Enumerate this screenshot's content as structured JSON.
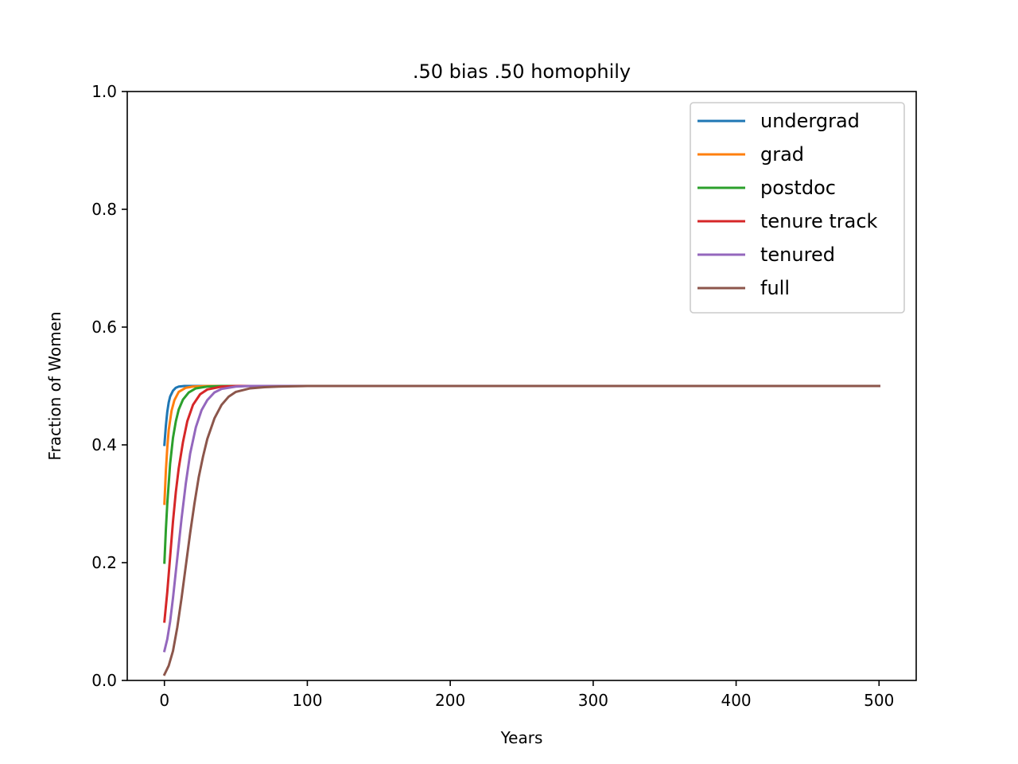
{
  "chart_data": {
    "type": "line",
    "title": ".50 bias .50 homophily",
    "xlabel": "Years",
    "ylabel": "Fraction of Women",
    "xlim": [
      -26,
      526
    ],
    "ylim": [
      0.0,
      1.0
    ],
    "x_ticks": [
      0,
      100,
      200,
      300,
      400,
      500
    ],
    "x_tick_labels": [
      "0",
      "100",
      "200",
      "300",
      "400",
      "500"
    ],
    "y_ticks": [
      0.0,
      0.2,
      0.4,
      0.6,
      0.8,
      1.0
    ],
    "y_tick_labels": [
      "0.0",
      "0.2",
      "0.4",
      "0.6",
      "0.8",
      "1.0"
    ],
    "grid": false,
    "legend_position": "top-right",
    "series": [
      {
        "name": "undergrad",
        "color": "#1f77b4",
        "x": [
          0,
          1,
          2,
          3,
          4,
          6,
          8,
          10,
          14,
          20,
          40,
          100,
          200,
          300,
          400,
          500
        ],
        "y": [
          0.4,
          0.432,
          0.456,
          0.472,
          0.482,
          0.492,
          0.497,
          0.499,
          0.5,
          0.5,
          0.5,
          0.5,
          0.5,
          0.5,
          0.5,
          0.5
        ]
      },
      {
        "name": "grad",
        "color": "#ff7f0e",
        "x": [
          0,
          1,
          2,
          3,
          5,
          7,
          10,
          15,
          20,
          30,
          60,
          100,
          200,
          300,
          400,
          500
        ],
        "y": [
          0.3,
          0.355,
          0.395,
          0.425,
          0.458,
          0.476,
          0.49,
          0.497,
          0.499,
          0.5,
          0.5,
          0.5,
          0.5,
          0.5,
          0.5,
          0.5
        ]
      },
      {
        "name": "postdoc",
        "color": "#2ca02c",
        "x": [
          0,
          1,
          2,
          4,
          6,
          8,
          10,
          13,
          17,
          22,
          30,
          40,
          60,
          100,
          200,
          300,
          400,
          500
        ],
        "y": [
          0.2,
          0.255,
          0.3,
          0.368,
          0.412,
          0.44,
          0.46,
          0.477,
          0.489,
          0.496,
          0.499,
          0.5,
          0.5,
          0.5,
          0.5,
          0.5,
          0.5,
          0.5
        ]
      },
      {
        "name": "tenure track",
        "color": "#d62728",
        "x": [
          0,
          2,
          4,
          6,
          8,
          10,
          13,
          16,
          20,
          25,
          30,
          40,
          50,
          70,
          100,
          200,
          300,
          400,
          500
        ],
        "y": [
          0.1,
          0.15,
          0.21,
          0.27,
          0.32,
          0.36,
          0.405,
          0.44,
          0.468,
          0.486,
          0.494,
          0.499,
          0.5,
          0.5,
          0.5,
          0.5,
          0.5,
          0.5,
          0.5
        ]
      },
      {
        "name": "tenured",
        "color": "#9467bd",
        "x": [
          0,
          2,
          4,
          6,
          8,
          10,
          12,
          15,
          18,
          22,
          26,
          30,
          35,
          40,
          50,
          60,
          80,
          100,
          200,
          300,
          400,
          500
        ],
        "y": [
          0.05,
          0.07,
          0.1,
          0.14,
          0.185,
          0.23,
          0.275,
          0.335,
          0.385,
          0.43,
          0.459,
          0.476,
          0.489,
          0.495,
          0.499,
          0.5,
          0.5,
          0.5,
          0.5,
          0.5,
          0.5,
          0.5
        ]
      },
      {
        "name": "full",
        "color": "#8c564b",
        "x": [
          0,
          3,
          6,
          9,
          12,
          15,
          18,
          21,
          24,
          27,
          30,
          35,
          40,
          45,
          50,
          60,
          70,
          80,
          90,
          100,
          120,
          140,
          200,
          300,
          400,
          500
        ],
        "y": [
          0.01,
          0.025,
          0.05,
          0.09,
          0.14,
          0.195,
          0.25,
          0.3,
          0.345,
          0.38,
          0.41,
          0.445,
          0.468,
          0.482,
          0.49,
          0.496,
          0.498,
          0.499,
          0.4995,
          0.5,
          0.5,
          0.5,
          0.5,
          0.5,
          0.5,
          0.5
        ]
      }
    ]
  }
}
